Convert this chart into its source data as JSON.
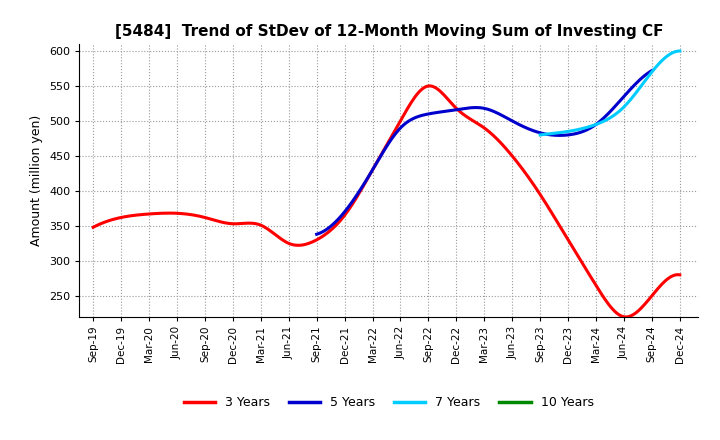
{
  "title": "[5484]  Trend of StDev of 12-Month Moving Sum of Investing CF",
  "ylabel": "Amount (million yen)",
  "ylim": [
    220,
    610
  ],
  "yticks": [
    250,
    300,
    350,
    400,
    450,
    500,
    550,
    600
  ],
  "background_color": "#ffffff",
  "grid_color": "#999999",
  "series_3y": {
    "color": "#ff0000",
    "x": [
      0,
      3,
      6,
      9,
      12,
      15,
      18,
      21,
      24,
      27,
      30,
      33,
      36,
      39,
      42,
      45,
      48,
      51,
      54,
      57,
      60,
      63
    ],
    "y": [
      348,
      362,
      367,
      368,
      362,
      353,
      351,
      325,
      330,
      365,
      430,
      500,
      550,
      518,
      490,
      450,
      395,
      330,
      265,
      220,
      250,
      280
    ]
  },
  "series_5y": {
    "color": "#0000cc",
    "x": [
      24,
      27,
      30,
      33,
      36,
      39,
      42,
      45,
      48,
      51,
      54,
      57,
      60
    ],
    "y": [
      338,
      370,
      430,
      490,
      510,
      516,
      518,
      500,
      483,
      480,
      495,
      535,
      572
    ]
  },
  "series_7y": {
    "color": "#00ccff",
    "x": [
      48,
      51,
      54,
      57,
      60,
      63
    ],
    "y": [
      480,
      485,
      495,
      520,
      570,
      600
    ]
  },
  "x_labels": [
    "Sep-19",
    "Dec-19",
    "Mar-20",
    "Jun-20",
    "Sep-20",
    "Dec-20",
    "Mar-21",
    "Jun-21",
    "Sep-21",
    "Dec-21",
    "Mar-22",
    "Jun-22",
    "Sep-22",
    "Dec-22",
    "Mar-23",
    "Jun-23",
    "Sep-23",
    "Dec-23",
    "Mar-24",
    "Jun-24",
    "Sep-24",
    "Dec-24"
  ],
  "x_positions": [
    0,
    3,
    6,
    9,
    12,
    15,
    18,
    21,
    24,
    27,
    30,
    33,
    36,
    39,
    42,
    45,
    48,
    51,
    54,
    57,
    60,
    63
  ],
  "legend": [
    {
      "label": "3 Years",
      "color": "#ff0000"
    },
    {
      "label": "5 Years",
      "color": "#0000cc"
    },
    {
      "label": "7 Years",
      "color": "#00ccff"
    },
    {
      "label": "10 Years",
      "color": "#008800"
    }
  ]
}
